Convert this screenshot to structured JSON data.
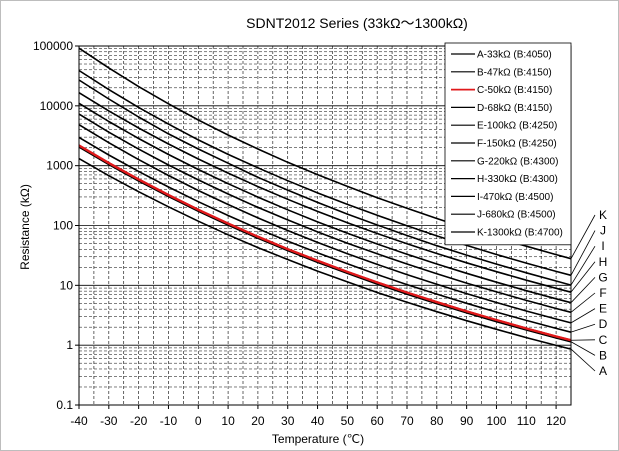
{
  "chart_data": {
    "type": "line",
    "title": "SDNT2012 Series (33kΩ～1300kΩ)",
    "xlabel": "Temperature (℃)",
    "ylabel": "Resistance (kΩ)",
    "xlim": [
      -40,
      125
    ],
    "ylim": [
      0.1,
      100000
    ],
    "yscale": "log",
    "grid": true,
    "legend": "top-right",
    "x_ticks": [
      "-40",
      "-30",
      "-20",
      "-10",
      "0",
      "10",
      "20",
      "30",
      "40",
      "50",
      "60",
      "70",
      "80",
      "90",
      "100",
      "110",
      "120"
    ],
    "y_ticks": [
      "0.1",
      "1",
      "10",
      "100",
      "1000",
      "10000",
      "100000"
    ],
    "highlight_color": "#e0191b",
    "line_color": "#000000",
    "series": [
      {
        "name": "A-33kΩ (B:4050)",
        "label": "A",
        "r25": 33,
        "beta": 4050,
        "values": [
          [
            -40,
            1312
          ],
          [
            -30,
            681
          ],
          [
            -20,
            367
          ],
          [
            -10,
            205
          ],
          [
            0,
            118
          ],
          [
            10,
            70
          ],
          [
            20,
            42.8
          ],
          [
            30,
            27
          ],
          [
            40,
            17.3
          ],
          [
            50,
            11.4
          ],
          [
            60,
            7.6
          ],
          [
            70,
            5.2
          ],
          [
            80,
            3.62
          ],
          [
            90,
            2.56
          ],
          [
            100,
            1.84
          ],
          [
            110,
            1.34
          ],
          [
            120,
            0.99
          ],
          [
            125,
            0.86
          ]
        ]
      },
      {
        "name": "B-47kΩ (B:4150)",
        "label": "B",
        "r25": 47,
        "beta": 4150,
        "values": [
          [
            -40,
            2054
          ],
          [
            -30,
            1044
          ],
          [
            -20,
            553
          ],
          [
            -10,
            304
          ],
          [
            0,
            173
          ],
          [
            10,
            101
          ],
          [
            20,
            61.1
          ],
          [
            30,
            38
          ],
          [
            40,
            24.2
          ],
          [
            50,
            15.8
          ],
          [
            60,
            10.5
          ],
          [
            70,
            7.1
          ],
          [
            80,
            4.93
          ],
          [
            90,
            3.46
          ],
          [
            100,
            2.47
          ],
          [
            110,
            1.79
          ],
          [
            120,
            1.32
          ],
          [
            125,
            1.14
          ]
        ]
      },
      {
        "name": "C-50kΩ (B:4150)",
        "label": "C",
        "r25": 50,
        "beta": 4150,
        "values": [
          [
            -40,
            2185
          ],
          [
            -30,
            1110
          ],
          [
            -20,
            589
          ],
          [
            -10,
            324
          ],
          [
            0,
            184
          ],
          [
            10,
            108
          ],
          [
            20,
            65
          ],
          [
            30,
            40.4
          ],
          [
            40,
            25.8
          ],
          [
            50,
            16.8
          ],
          [
            60,
            11.2
          ],
          [
            70,
            7.6
          ],
          [
            80,
            5.24
          ],
          [
            90,
            3.68
          ],
          [
            100,
            2.63
          ],
          [
            110,
            1.91
          ],
          [
            120,
            1.4
          ],
          [
            125,
            1.21
          ]
        ]
      },
      {
        "name": "D-68kΩ (B:4150)",
        "label": "D",
        "r25": 68,
        "beta": 4150,
        "values": [
          [
            -40,
            2971
          ],
          [
            -30,
            1510
          ],
          [
            -20,
            801
          ],
          [
            -10,
            440
          ],
          [
            0,
            250
          ],
          [
            10,
            147
          ],
          [
            20,
            88.4
          ],
          [
            30,
            54.9
          ],
          [
            40,
            35
          ],
          [
            50,
            22.9
          ],
          [
            60,
            15.2
          ],
          [
            70,
            10.3
          ],
          [
            80,
            7.13
          ],
          [
            90,
            5.01
          ],
          [
            100,
            3.57
          ],
          [
            110,
            2.59
          ],
          [
            120,
            1.91
          ],
          [
            125,
            1.65
          ]
        ]
      },
      {
        "name": "E-100kΩ (B:4250)",
        "label": "E",
        "r25": 100,
        "beta": 4250,
        "values": [
          [
            -40,
            4842
          ],
          [
            -30,
            2417
          ],
          [
            -20,
            1261
          ],
          [
            -10,
            684
          ],
          [
            0,
            385
          ],
          [
            10,
            224
          ],
          [
            20,
            134
          ],
          [
            30,
            82.4
          ],
          [
            40,
            52.1
          ],
          [
            50,
            33.8
          ],
          [
            60,
            22.4
          ],
          [
            70,
            15.1
          ],
          [
            80,
            10.4
          ],
          [
            90,
            7.28
          ],
          [
            100,
            5.17
          ],
          [
            110,
            3.73
          ],
          [
            120,
            2.74
          ],
          [
            125,
            2.36
          ]
        ]
      },
      {
        "name": "F-150kΩ (B:4250)",
        "label": "F",
        "r25": 150,
        "beta": 4250,
        "values": [
          [
            -40,
            7263
          ],
          [
            -30,
            3626
          ],
          [
            -20,
            1892
          ],
          [
            -10,
            1026
          ],
          [
            0,
            578
          ],
          [
            10,
            336
          ],
          [
            20,
            201
          ],
          [
            30,
            124
          ],
          [
            40,
            78.1
          ],
          [
            50,
            50.7
          ],
          [
            60,
            33.6
          ],
          [
            70,
            22.7
          ],
          [
            80,
            15.6
          ],
          [
            90,
            10.9
          ],
          [
            100,
            7.76
          ],
          [
            110,
            5.6
          ],
          [
            120,
            4.1
          ],
          [
            125,
            3.54
          ]
        ]
      },
      {
        "name": "G-220kΩ (B:4300)",
        "label": "G",
        "r25": 220,
        "beta": 4300,
        "values": [
          [
            -40,
            11042
          ],
          [
            -30,
            5477
          ],
          [
            -20,
            2846
          ],
          [
            -10,
            1536
          ],
          [
            0,
            862
          ],
          [
            10,
            500
          ],
          [
            20,
            298
          ],
          [
            30,
            183
          ],
          [
            40,
            115
          ],
          [
            50,
            74.3
          ],
          [
            60,
            49.1
          ],
          [
            70,
            33.1
          ],
          [
            80,
            22.7
          ],
          [
            90,
            15.9
          ],
          [
            100,
            11.3
          ],
          [
            110,
            8.12
          ],
          [
            120,
            5.95
          ],
          [
            125,
            5.13
          ]
        ]
      },
      {
        "name": "H-330kΩ (B:4300)",
        "label": "H",
        "r25": 330,
        "beta": 4300,
        "values": [
          [
            -40,
            16563
          ],
          [
            -30,
            8216
          ],
          [
            -20,
            4268
          ],
          [
            -10,
            2304
          ],
          [
            0,
            1293
          ],
          [
            10,
            750
          ],
          [
            20,
            447
          ],
          [
            30,
            274
          ],
          [
            40,
            172
          ],
          [
            50,
            111
          ],
          [
            60,
            73.6
          ],
          [
            70,
            49.6
          ],
          [
            80,
            34.1
          ],
          [
            90,
            23.8
          ],
          [
            100,
            16.9
          ],
          [
            110,
            12.2
          ],
          [
            120,
            8.92
          ],
          [
            125,
            7.69
          ]
        ]
      },
      {
        "name": "I-470kΩ (B:4500)",
        "label": "I",
        "r25": 470,
        "beta": 4500,
        "values": [
          [
            -40,
            27000
          ],
          [
            -30,
            13000
          ],
          [
            -20,
            6500
          ],
          [
            -10,
            3400
          ],
          [
            0,
            1900
          ],
          [
            10,
            1100
          ],
          [
            20,
            640
          ],
          [
            30,
            390
          ],
          [
            40,
            243
          ],
          [
            50,
            155
          ],
          [
            60,
            102
          ],
          [
            70,
            68
          ],
          [
            80,
            46
          ],
          [
            90,
            32
          ],
          [
            100,
            22.6
          ],
          [
            110,
            16.2
          ],
          [
            120,
            11.8
          ],
          [
            125,
            10.1
          ]
        ]
      },
      {
        "name": "J-680kΩ (B:4500)",
        "label": "J",
        "r25": 680,
        "beta": 4500,
        "values": [
          [
            -40,
            39000
          ],
          [
            -30,
            18700
          ],
          [
            -20,
            9400
          ],
          [
            -10,
            4950
          ],
          [
            0,
            2700
          ],
          [
            10,
            1540
          ],
          [
            20,
            920
          ],
          [
            30,
            560
          ],
          [
            40,
            350
          ],
          [
            50,
            225
          ],
          [
            60,
            148
          ],
          [
            70,
            99
          ],
          [
            80,
            67
          ],
          [
            90,
            46.5
          ],
          [
            100,
            32.8
          ],
          [
            110,
            23.5
          ],
          [
            120,
            17.1
          ],
          [
            125,
            14.7
          ]
        ]
      },
      {
        "name": "K-1300kΩ (B:4700)",
        "label": "K",
        "r25": 1300,
        "beta": 4700,
        "values": [
          [
            -40,
            92000
          ],
          [
            -30,
            43000
          ],
          [
            -20,
            21000
          ],
          [
            -10,
            10800
          ],
          [
            0,
            5800
          ],
          [
            10,
            3250
          ],
          [
            20,
            1900
          ],
          [
            30,
            1140
          ],
          [
            40,
            710
          ],
          [
            50,
            450
          ],
          [
            60,
            292
          ],
          [
            70,
            194
          ],
          [
            80,
            131
          ],
          [
            90,
            90
          ],
          [
            100,
            63
          ],
          [
            110,
            45
          ],
          [
            120,
            32.6
          ],
          [
            125,
            27.9
          ]
        ]
      }
    ]
  }
}
